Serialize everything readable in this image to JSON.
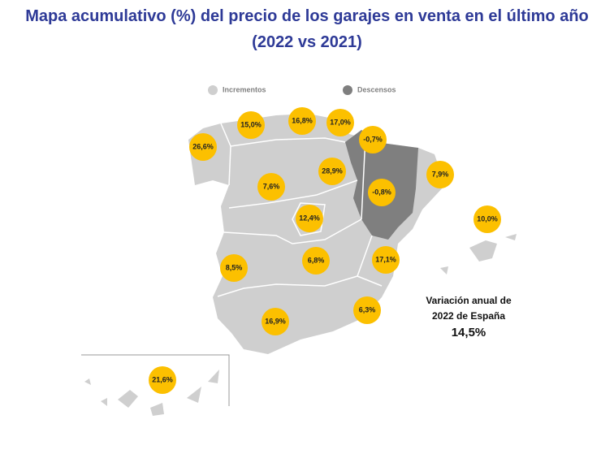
{
  "title": [
    "Mapa acumulativo (%) del precio de los garajes en venta en el último año",
    "(2022 vs 2021)"
  ],
  "legend": [
    {
      "label": "Incrementos",
      "color": "#cfcfcf"
    },
    {
      "label": "Descensos",
      "color": "#7f7f7f"
    }
  ],
  "regions": [
    {
      "label": "26,6%"
    },
    {
      "label": "15,0%"
    },
    {
      "label": "16,8%"
    },
    {
      "label": "17,0%"
    },
    {
      "label": "-0,7%"
    },
    {
      "label": "28,9%"
    },
    {
      "label": "7,9%"
    },
    {
      "label": "7,6%"
    },
    {
      "label": "-0,8%"
    },
    {
      "label": "12,4%"
    },
    {
      "label": "10,0%"
    },
    {
      "label": "8,5%"
    },
    {
      "label": "6,8%"
    },
    {
      "label": "17,1%"
    },
    {
      "label": "6,3%"
    },
    {
      "label": "16,9%"
    },
    {
      "label": "21,6%"
    }
  ],
  "national": {
    "lines": [
      "Variación anual de",
      "2022 de España"
    ],
    "value": "14,5%"
  }
}
